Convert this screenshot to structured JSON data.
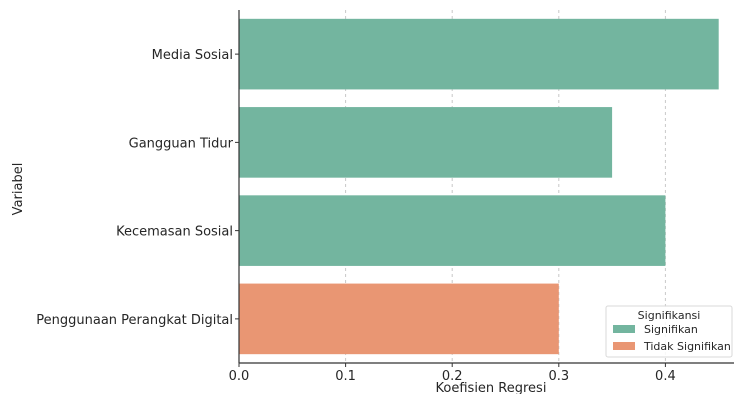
{
  "chart_data": {
    "type": "bar",
    "orientation": "horizontal",
    "xlabel": "Koefisien Regresi",
    "ylabel": "Variabel",
    "xlim": [
      0,
      0.46
    ],
    "xticks": [
      0.0,
      0.1,
      0.2,
      0.3,
      0.4
    ],
    "xtick_labels": [
      "0.0",
      "0.1",
      "0.2",
      "0.3",
      "0.4"
    ],
    "grid": "vertical dashed",
    "categories": [
      "Media Sosial",
      "Gangguan Tidur",
      "Kecemasan Sosial",
      "Penggunaan Perangkat Digital"
    ],
    "values": [
      0.45,
      0.35,
      0.4,
      0.3
    ],
    "groups": [
      "Signifikan",
      "Signifikan",
      "Signifikan",
      "Tidak Signifikan"
    ],
    "legend": {
      "title": "Signifikansi",
      "placement": "lower-right",
      "entries": [
        {
          "label": "Signifikan",
          "color": "#73b59f"
        },
        {
          "label": "Tidak Signifikan",
          "color": "#e99673"
        }
      ]
    }
  }
}
